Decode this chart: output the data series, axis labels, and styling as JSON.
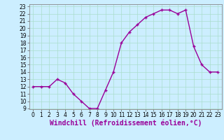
{
  "x": [
    0,
    1,
    2,
    3,
    4,
    5,
    6,
    7,
    8,
    9,
    10,
    11,
    12,
    13,
    14,
    15,
    16,
    17,
    18,
    19,
    20,
    21,
    22,
    23
  ],
  "y": [
    12.0,
    12.0,
    12.0,
    13.0,
    12.5,
    11.0,
    10.0,
    9.0,
    9.0,
    11.5,
    14.0,
    18.0,
    19.5,
    20.5,
    21.5,
    22.0,
    22.5,
    22.5,
    22.0,
    22.5,
    17.5,
    15.0,
    14.0,
    14.0
  ],
  "line_color": "#990099",
  "marker": "+",
  "bg_color": "#cceeff",
  "grid_color": "#aaddcc",
  "xlabel": "Windchill (Refroidissement éolien,°C)",
  "xlabel_color": "#990099",
  "xlim": [
    -0.5,
    23.5
  ],
  "ylim": [
    9,
    23
  ],
  "yticks": [
    9,
    10,
    11,
    12,
    13,
    14,
    15,
    16,
    17,
    18,
    19,
    20,
    21,
    22,
    23
  ],
  "xticks": [
    0,
    1,
    2,
    3,
    4,
    5,
    6,
    7,
    8,
    9,
    10,
    11,
    12,
    13,
    14,
    15,
    16,
    17,
    18,
    19,
    20,
    21,
    22,
    23
  ],
  "tick_fontsize": 5.5,
  "xlabel_fontsize": 7.0,
  "linewidth": 1.0,
  "markersize": 3.0
}
